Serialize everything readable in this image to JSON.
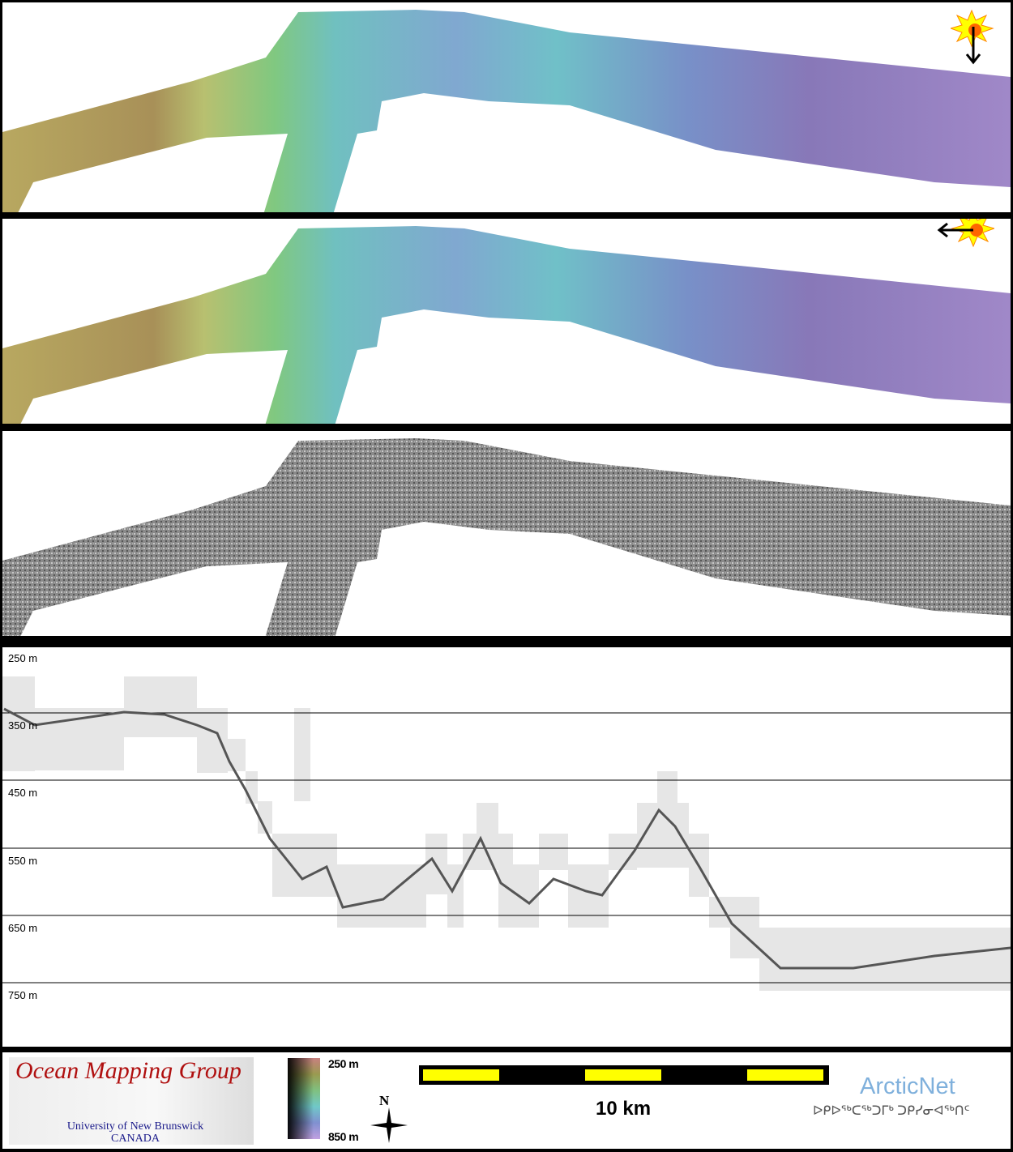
{
  "panels": [
    {
      "name": "shaded-relief-north-illumination",
      "sun_direction": "from north"
    },
    {
      "name": "shaded-relief-east-illumination",
      "sun_direction": "from east"
    },
    {
      "name": "backscatter-mosaic"
    }
  ],
  "profile": {
    "depth_labels": [
      "250 m",
      "350 m",
      "450 m",
      "550 m",
      "650 m",
      "750 m"
    ]
  },
  "footer": {
    "logo_title": "Ocean Mapping Group",
    "logo_line1": "University of New Brunswick",
    "logo_line2": "CANADA",
    "colorbar_top": "250 m",
    "colorbar_bottom": "850 m",
    "north_label": "N",
    "scale_label": "10 km",
    "partner": "ArcticNet",
    "partner_sub": "ᐅᑭᐅᖅᑕᖅᑐᒥᒃ ᑐᑭᓯᓂᐊᖅᑎᑦ"
  },
  "colors": {
    "scale_yellow": "#ffff00",
    "logo_red": "#b01010",
    "logo_blue": "#1a1a8a",
    "arcticnet_blue": "#7fb0dc"
  }
}
